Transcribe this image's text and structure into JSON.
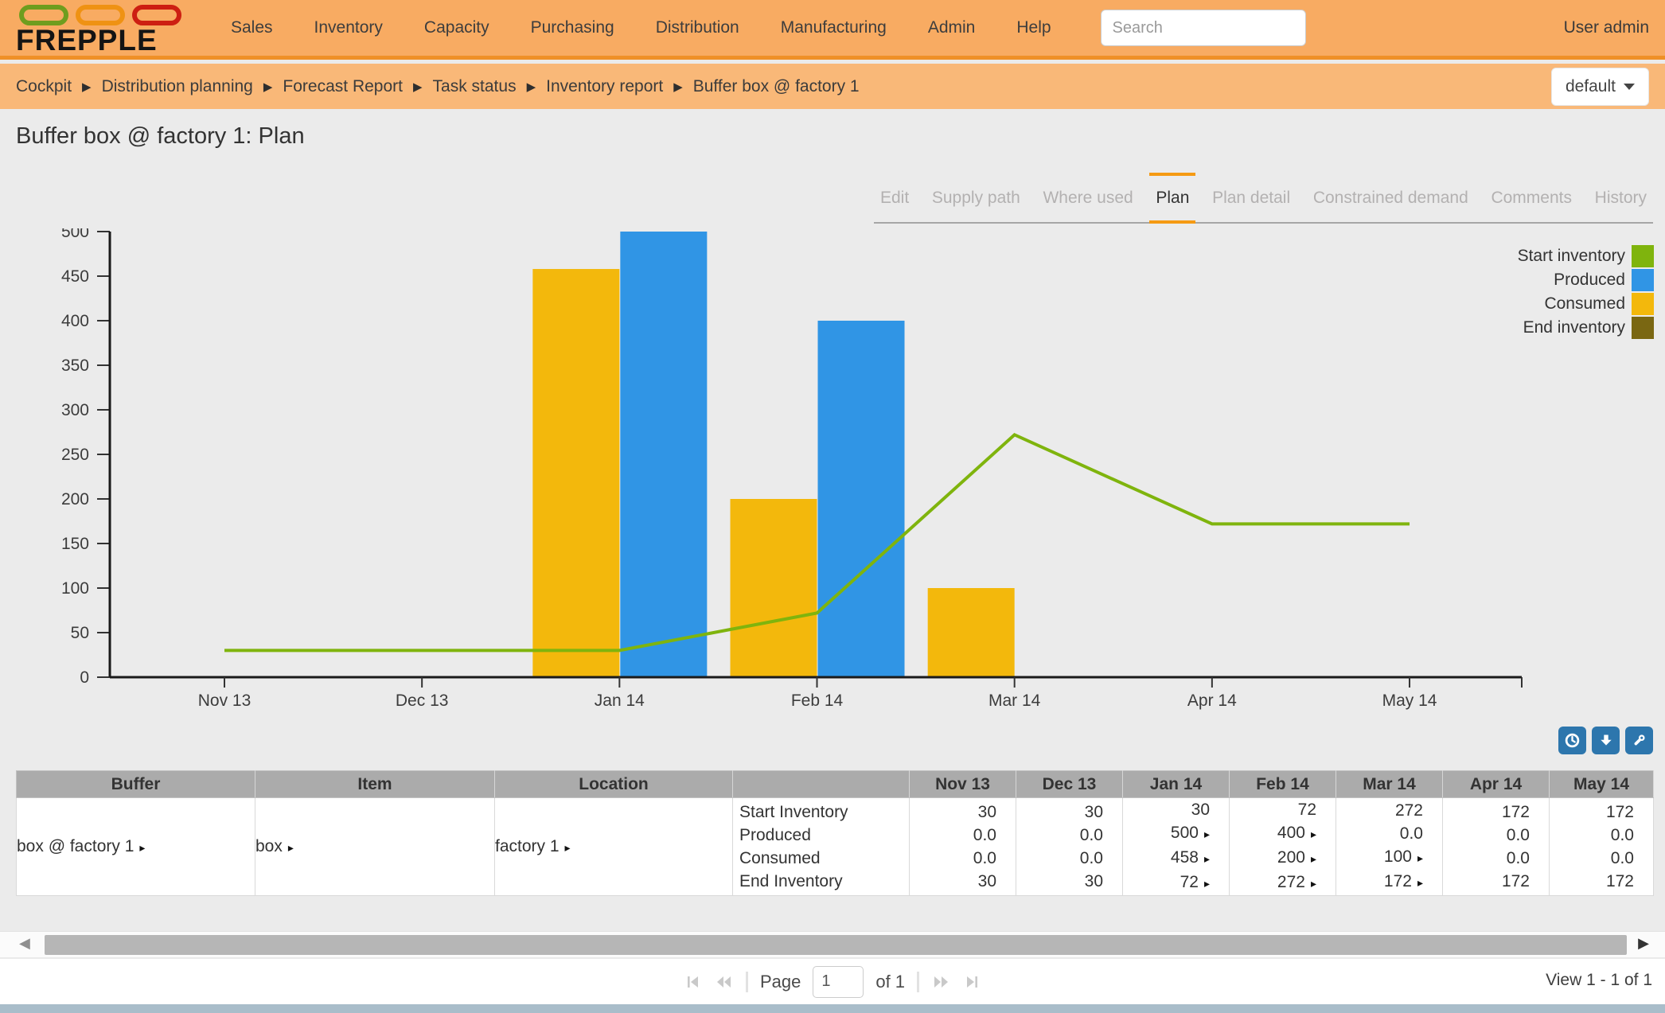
{
  "navbar": {
    "brand": "FREPPLE",
    "items": [
      "Sales",
      "Inventory",
      "Capacity",
      "Purchasing",
      "Distribution",
      "Manufacturing",
      "Admin",
      "Help"
    ],
    "search_placeholder": "Search",
    "user": "User admin"
  },
  "breadcrumb": {
    "items": [
      "Cockpit",
      "Distribution planning",
      "Forecast Report",
      "Task status",
      "Inventory report",
      "Buffer box @ factory 1"
    ],
    "scenario": "default"
  },
  "page": {
    "title": "Buffer box @ factory 1: Plan"
  },
  "tabs": [
    {
      "label": "Edit",
      "active": false
    },
    {
      "label": "Supply path",
      "active": false
    },
    {
      "label": "Where used",
      "active": false
    },
    {
      "label": "Plan",
      "active": true
    },
    {
      "label": "Plan detail",
      "active": false
    },
    {
      "label": "Constrained demand",
      "active": false
    },
    {
      "label": "Comments",
      "active": false
    },
    {
      "label": "History",
      "active": false
    }
  ],
  "chart_data": {
    "type": "bar",
    "categories": [
      "Nov 13",
      "Dec 13",
      "Jan 14",
      "Feb 14",
      "Mar 14",
      "Apr 14",
      "May 14"
    ],
    "series": [
      {
        "name": "Start inventory",
        "type": "line",
        "color": "#7fb40d",
        "visible": true,
        "values": [
          30,
          30,
          30,
          72,
          272,
          172,
          172
        ]
      },
      {
        "name": "Produced",
        "type": "bar",
        "color": "#3095e5",
        "align": "right",
        "visible": true,
        "values": [
          0,
          0,
          500,
          400,
          0,
          0,
          0
        ]
      },
      {
        "name": "Consumed",
        "type": "bar",
        "color": "#f3b80c",
        "align": "left",
        "visible": true,
        "values": [
          0,
          0,
          458,
          200,
          100,
          0,
          0
        ]
      },
      {
        "name": "End inventory",
        "type": "line",
        "color": "#7a6712",
        "visible": false,
        "values": [
          30,
          30,
          72,
          272,
          172,
          172,
          172
        ]
      }
    ],
    "title": "",
    "xlabel": "",
    "ylabel": "",
    "ylim": [
      0,
      500
    ],
    "ytick_step": 50,
    "grid": false,
    "legend_position": "top-right"
  },
  "toolbar": {
    "buttons": [
      {
        "icon": "clock"
      },
      {
        "icon": "download"
      },
      {
        "icon": "wrench"
      }
    ]
  },
  "table": {
    "headers": [
      "Buffer",
      "Item",
      "Location",
      "",
      "Nov 13",
      "Dec 13",
      "Jan 14",
      "Feb 14",
      "Mar 14",
      "Apr 14",
      "May 14"
    ],
    "row": {
      "buffer": "box @ factory 1",
      "item": "box",
      "location": "factory 1",
      "measures": [
        "Start Inventory",
        "Produced",
        "Consumed",
        "End Inventory"
      ],
      "values": [
        [
          {
            "text": "30"
          },
          {
            "text": "30"
          },
          {
            "text": "30"
          },
          {
            "text": "72"
          },
          {
            "text": "272"
          },
          {
            "text": "172"
          },
          {
            "text": "172"
          }
        ],
        [
          {
            "text": "0.0"
          },
          {
            "text": "0.0"
          },
          {
            "text": "500",
            "drill": true
          },
          {
            "text": "400",
            "drill": true
          },
          {
            "text": "0.0"
          },
          {
            "text": "0.0"
          },
          {
            "text": "0.0"
          }
        ],
        [
          {
            "text": "0.0"
          },
          {
            "text": "0.0"
          },
          {
            "text": "458",
            "drill": true
          },
          {
            "text": "200",
            "drill": true
          },
          {
            "text": "100",
            "drill": true
          },
          {
            "text": "0.0"
          },
          {
            "text": "0.0"
          }
        ],
        [
          {
            "text": "30"
          },
          {
            "text": "30"
          },
          {
            "text": "72",
            "drill": true
          },
          {
            "text": "272",
            "drill": true
          },
          {
            "text": "172",
            "drill": true
          },
          {
            "text": "172"
          },
          {
            "text": "172"
          }
        ]
      ]
    }
  },
  "pager": {
    "page_label": "Page",
    "page_value": "1",
    "of_label": "of 1",
    "view_label": "View 1 - 1 of 1"
  },
  "colors": {
    "navbar_bg": "#f8ab62",
    "breadcrumb_bg": "#f9b878",
    "tab_accent": "#f59a13",
    "toolbar_button": "#2d76ad",
    "table_header_bg": "#ababab",
    "bottom_strip": "#a9bdca"
  }
}
